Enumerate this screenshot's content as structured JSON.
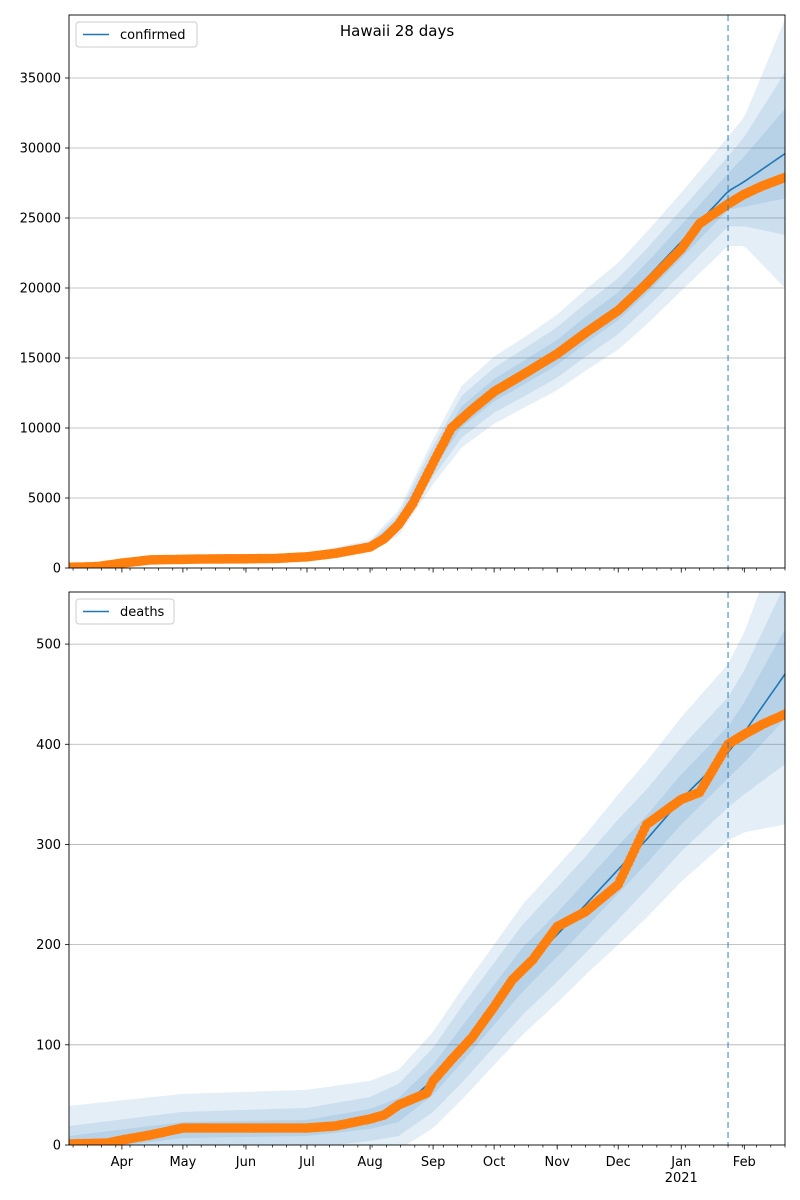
{
  "title": "Hawaii 28 days",
  "colors": {
    "model": "#1f77b4",
    "observed": "#ff7f0e",
    "band": "#1f77b4",
    "grid": "#b0b0b0",
    "vline": "#1f77b4"
  },
  "x_axis": {
    "month_ticks": [
      "Apr",
      "May",
      "Jun",
      "Jul",
      "Aug",
      "Sep",
      "Oct",
      "Nov",
      "Dec",
      "Jan",
      "Feb"
    ],
    "year_label": "2021"
  },
  "chart_data": [
    {
      "type": "line",
      "legend": "confirmed",
      "legend_position": "upper-left",
      "grid": "horizontal",
      "x_range": [
        "2020-03-06",
        "2021-02-21"
      ],
      "forecast_start": "2021-01-24",
      "ylim": [
        0,
        39500
      ],
      "yticks": [
        0,
        5000,
        10000,
        15000,
        20000,
        25000,
        30000,
        35000
      ],
      "observed": {
        "x": [
          "2020-03-06",
          "2020-03-20",
          "2020-04-01",
          "2020-04-15",
          "2020-05-01",
          "2020-05-15",
          "2020-06-01",
          "2020-06-15",
          "2020-07-01",
          "2020-07-15",
          "2020-08-01",
          "2020-08-08",
          "2020-08-15",
          "2020-08-22",
          "2020-09-01",
          "2020-09-10",
          "2020-09-20",
          "2020-10-01",
          "2020-10-15",
          "2020-11-01",
          "2020-11-15",
          "2020-12-01",
          "2020-12-15",
          "2021-01-01",
          "2021-01-10",
          "2021-01-24",
          "2021-02-01",
          "2021-02-10",
          "2021-02-21"
        ],
        "y": [
          50,
          100,
          350,
          580,
          620,
          650,
          660,
          680,
          800,
          1050,
          1500,
          2100,
          3100,
          4600,
          7500,
          10000,
          11300,
          12600,
          13800,
          15300,
          16800,
          18400,
          20300,
          22800,
          24600,
          26000,
          26700,
          27300,
          27900
        ]
      },
      "model": {
        "x": [
          "2020-07-01",
          "2020-08-01",
          "2020-08-15",
          "2020-09-01",
          "2020-09-15",
          "2020-10-01",
          "2020-10-15",
          "2020-11-01",
          "2020-11-15",
          "2020-12-01",
          "2020-12-15",
          "2021-01-01",
          "2021-01-24",
          "2021-02-01",
          "2021-02-21"
        ],
        "y": [
          900,
          1600,
          3200,
          7600,
          10800,
          12700,
          13900,
          15400,
          17000,
          18700,
          20700,
          23300,
          26900,
          27600,
          29600
        ],
        "band_half_widths": {
          "outer": [
            150,
            400,
            900,
            1600,
            2200,
            2400,
            2500,
            2700,
            2900,
            3100,
            3300,
            3500,
            3900,
            4600,
            9600
          ],
          "middle": [
            100,
            250,
            600,
            1100,
            1500,
            1600,
            1700,
            1800,
            1900,
            2000,
            2100,
            2300,
            2500,
            3200,
            5800
          ],
          "inner": [
            50,
            130,
            300,
            550,
            750,
            800,
            850,
            900,
            950,
            1000,
            1100,
            1200,
            1300,
            1800,
            3200
          ]
        }
      }
    },
    {
      "type": "line",
      "legend": "deaths",
      "legend_position": "upper-left",
      "grid": "horizontal",
      "x_range": [
        "2020-03-06",
        "2021-02-21"
      ],
      "forecast_start": "2021-01-24",
      "ylim": [
        0,
        552
      ],
      "yticks": [
        0,
        100,
        200,
        300,
        400,
        500
      ],
      "observed": {
        "x": [
          "2020-03-06",
          "2020-03-25",
          "2020-04-01",
          "2020-04-15",
          "2020-05-01",
          "2020-05-15",
          "2020-06-01",
          "2020-06-15",
          "2020-07-01",
          "2020-07-15",
          "2020-08-01",
          "2020-08-08",
          "2020-08-15",
          "2020-08-22",
          "2020-08-29",
          "2020-09-01",
          "2020-09-10",
          "2020-09-20",
          "2020-10-01",
          "2020-10-10",
          "2020-10-20",
          "2020-11-01",
          "2020-11-15",
          "2020-12-01",
          "2020-12-15",
          "2021-01-01",
          "2021-01-10",
          "2021-01-24",
          "2021-02-01",
          "2021-02-10",
          "2021-02-21"
        ],
        "y": [
          1,
          2,
          5,
          10,
          17,
          17,
          17,
          17,
          17,
          19,
          26,
          30,
          40,
          46,
          52,
          64,
          85,
          107,
          138,
          165,
          185,
          218,
          233,
          260,
          320,
          345,
          352,
          400,
          410,
          420,
          430
        ]
      },
      "model": {
        "x": [
          "2020-03-06",
          "2020-05-01",
          "2020-07-01",
          "2020-08-01",
          "2020-08-15",
          "2020-09-01",
          "2020-09-15",
          "2020-10-01",
          "2020-10-15",
          "2020-11-01",
          "2020-11-15",
          "2020-12-01",
          "2020-12-15",
          "2021-01-01",
          "2021-01-24",
          "2021-02-01",
          "2021-02-21"
        ],
        "y": [
          1,
          15,
          17,
          26,
          35,
          65,
          100,
          140,
          175,
          210,
          240,
          275,
          305,
          345,
          392,
          412,
          470
        ],
        "band_half_widths": {
          "outer": [
            38,
            36,
            38,
            38,
            40,
            48,
            55,
            60,
            65,
            68,
            70,
            75,
            78,
            82,
            88,
            100,
            150
          ],
          "middle": [
            18,
            18,
            20,
            22,
            26,
            32,
            38,
            42,
            45,
            47,
            48,
            50,
            50,
            52,
            55,
            62,
            90
          ],
          "inner": [
            8,
            8,
            8,
            10,
            12,
            15,
            18,
            20,
            22,
            22,
            23,
            24,
            24,
            25,
            26,
            30,
            45
          ]
        }
      }
    }
  ]
}
